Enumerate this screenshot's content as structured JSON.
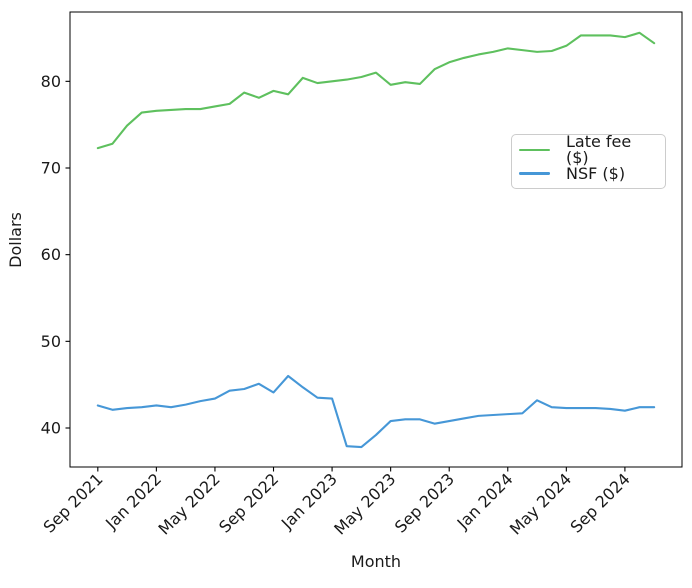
{
  "figure": {
    "background": "#ffffff",
    "axis_color": "#000000",
    "text_color": "#1a1a1a",
    "legend_border_color": "#cccccc"
  },
  "legend": {
    "entries": [
      {
        "key": "late-fee",
        "label": "Late fee ($)",
        "color": "#5ec05e"
      },
      {
        "key": "nsf",
        "label": "NSF ($)",
        "color": "#4697d7"
      }
    ]
  },
  "chart_data": {
    "type": "line",
    "title": "",
    "xlabel": "Month",
    "ylabel": "Dollars",
    "categories": [
      "Sep 2021",
      "Oct 2021",
      "Nov 2021",
      "Dec 2021",
      "Jan 2022",
      "Feb 2022",
      "Mar 2022",
      "Apr 2022",
      "May 2022",
      "Jun 2022",
      "Jul 2022",
      "Aug 2022",
      "Sep 2022",
      "Oct 2022",
      "Nov 2022",
      "Dec 2022",
      "Jan 2023",
      "Feb 2023",
      "Mar 2023",
      "Apr 2023",
      "May 2023",
      "Jun 2023",
      "Jul 2023",
      "Aug 2023",
      "Sep 2023",
      "Oct 2023",
      "Nov 2023",
      "Dec 2023",
      "Jan 2024",
      "Feb 2024",
      "Mar 2024",
      "Apr 2024",
      "May 2024",
      "Jun 2024",
      "Jul 2024",
      "Aug 2024",
      "Sep 2024",
      "Oct 2024",
      "Nov 2024"
    ],
    "series": [
      {
        "key": "late-fee",
        "name": "Late fee ($)",
        "color": "#5ec05e",
        "values": [
          72.3,
          72.8,
          74.9,
          76.4,
          76.6,
          76.7,
          76.8,
          76.8,
          77.1,
          77.4,
          78.7,
          78.1,
          78.9,
          78.5,
          80.4,
          79.8,
          80.0,
          80.2,
          80.5,
          81.0,
          79.6,
          79.9,
          79.7,
          81.4,
          82.2,
          82.7,
          83.1,
          83.4,
          83.8,
          83.6,
          83.4,
          83.5,
          84.1,
          85.3,
          85.3,
          85.3,
          85.1,
          85.6,
          84.4
        ]
      },
      {
        "key": "nsf",
        "name": "NSF ($)",
        "color": "#4697d7",
        "values": [
          42.6,
          42.1,
          42.3,
          42.4,
          42.6,
          42.4,
          42.7,
          43.1,
          43.4,
          44.3,
          44.5,
          45.1,
          44.1,
          46.0,
          44.7,
          43.5,
          43.4,
          37.9,
          37.8,
          39.2,
          40.8,
          41.0,
          41.0,
          40.5,
          40.8,
          41.1,
          41.4,
          41.5,
          41.6,
          41.7,
          43.2,
          42.4,
          42.3,
          42.3,
          42.3,
          42.2,
          42.0,
          42.4,
          42.4
        ]
      }
    ],
    "x_tick_indices": [
      0,
      4,
      8,
      12,
      16,
      20,
      24,
      28,
      32,
      36
    ],
    "x_tick_labels": [
      "Sep 2021",
      "Jan 2022",
      "May 2022",
      "Sep 2022",
      "Jan 2023",
      "May 2023",
      "Sep 2023",
      "Jan 2024",
      "May 2024",
      "Sep 2024"
    ],
    "x_tick_rotation": 45,
    "y_ticks": [
      40,
      50,
      60,
      70,
      80
    ],
    "ylim": [
      35.5,
      88.0
    ],
    "grid": false,
    "legend_position": "center right"
  }
}
